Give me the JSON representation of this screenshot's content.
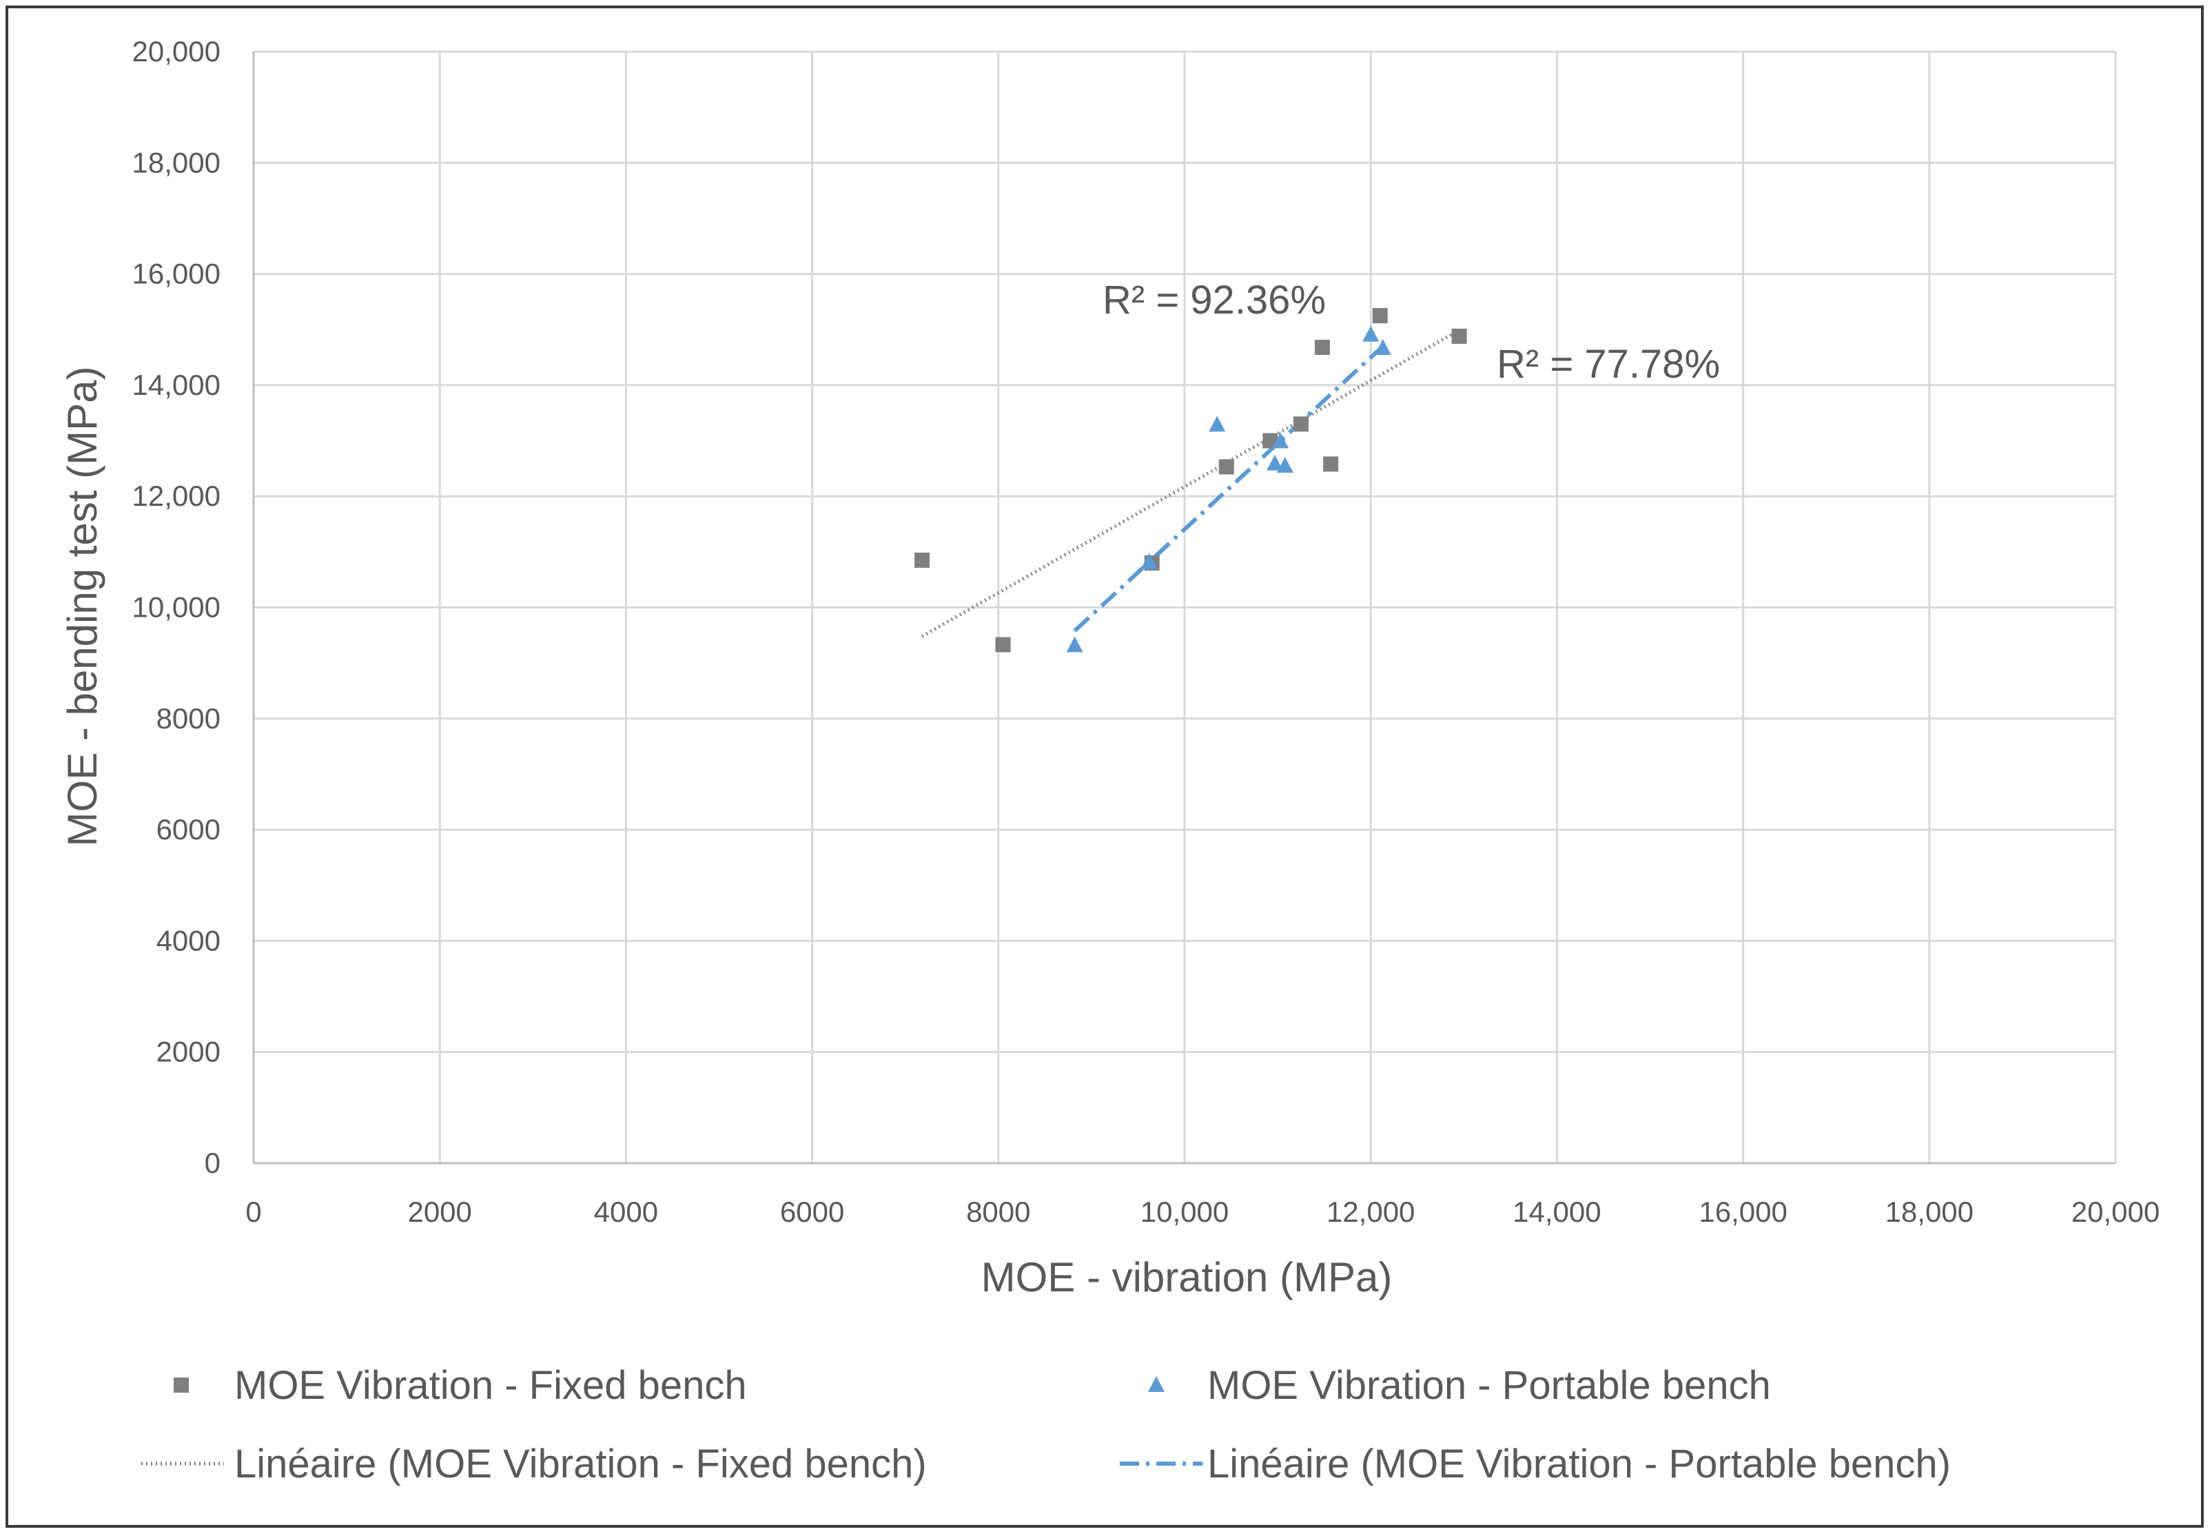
{
  "chart_data": {
    "type": "scatter",
    "title": "",
    "xlabel": "MOE - vibration (MPa)",
    "ylabel": "MOE - bending test (MPa)",
    "xlim": [
      0,
      20000
    ],
    "ylim": [
      0,
      20000
    ],
    "grid": true,
    "x_ticks": [
      0,
      2000,
      4000,
      6000,
      8000,
      10000,
      12000,
      14000,
      16000,
      18000,
      20000
    ],
    "x_tick_labels": [
      "0",
      "2000",
      "4000",
      "6000",
      "8000",
      "10,000",
      "12,000",
      "14,000",
      "16,000",
      "18,000",
      "20,000"
    ],
    "y_ticks": [
      0,
      2000,
      4000,
      6000,
      8000,
      10000,
      12000,
      14000,
      16000,
      18000,
      20000
    ],
    "y_tick_labels": [
      "0",
      "2000",
      "4000",
      "6000",
      "8000",
      "10,000",
      "12,000",
      "14,000",
      "16,000",
      "18,000",
      "20,000"
    ],
    "series": [
      {
        "name": "MOE Vibration - Fixed bench",
        "marker": "square",
        "color": "#7f7f7f",
        "points": [
          [
            7180,
            10850
          ],
          [
            8050,
            9330
          ],
          [
            9650,
            10800
          ],
          [
            10450,
            12530
          ],
          [
            10920,
            13000
          ],
          [
            11250,
            13300
          ],
          [
            11480,
            14680
          ],
          [
            11570,
            12580
          ],
          [
            12100,
            15250
          ],
          [
            12950,
            14880
          ]
        ]
      },
      {
        "name": "MOE Vibration - Portable bench",
        "marker": "triangle",
        "color": "#5b9bd5",
        "points": [
          [
            8820,
            9330
          ],
          [
            9620,
            10830
          ],
          [
            10350,
            13300
          ],
          [
            10970,
            12600
          ],
          [
            11030,
            13000
          ],
          [
            11080,
            12560
          ],
          [
            12000,
            14920
          ],
          [
            12130,
            14680
          ]
        ]
      }
    ],
    "trendlines": [
      {
        "name": "Linéaire (MOE Vibration - Fixed bench)",
        "style": "dotted",
        "color": "#7f7f7f",
        "from": [
          7180,
          9480
        ],
        "to": [
          12950,
          14990
        ],
        "r2_label": "R² = 77.78%"
      },
      {
        "name": "Linéaire (MOE Vibration - Portable bench)",
        "style": "dash-dot",
        "color": "#5b9bd5",
        "from": [
          8820,
          9580
        ],
        "to": [
          12130,
          14700
        ],
        "r2_label": "R² = 92.36%"
      }
    ],
    "legend_position": "bottom"
  }
}
